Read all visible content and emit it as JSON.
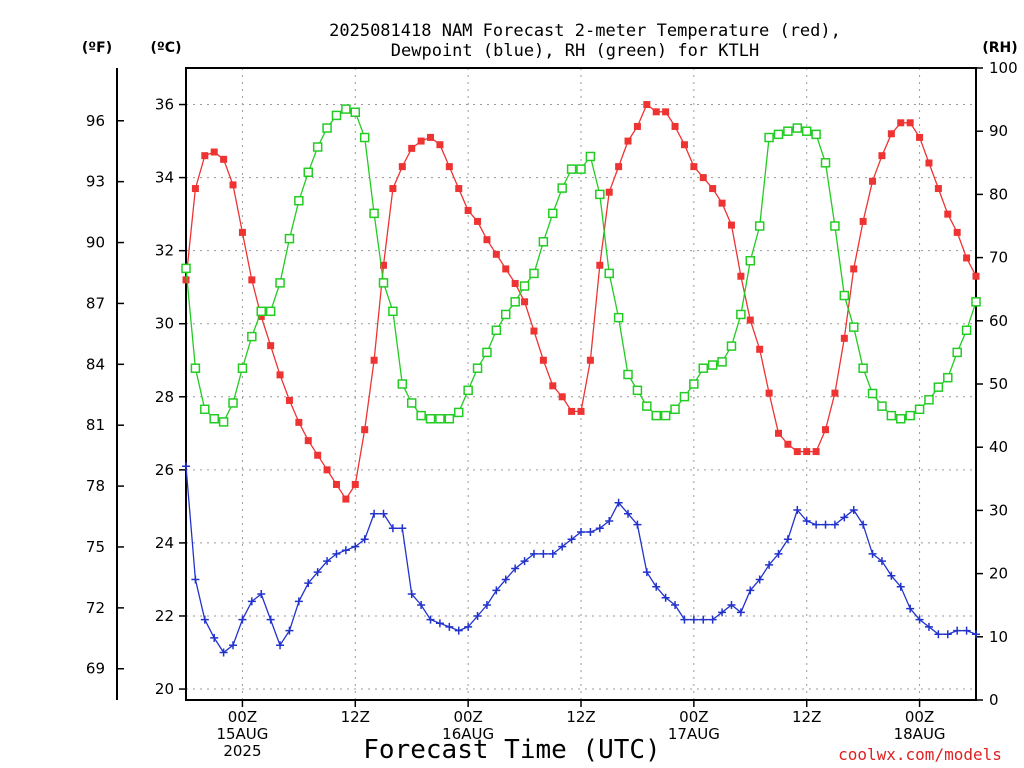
{
  "chart_data": {
    "type": "line",
    "title": [
      "2025081418 NAM Forecast 2-meter Temperature (red),",
      "Dewpoint (blue), RH (green) for KTLH"
    ],
    "xlabel": "Forecast Time (UTC)",
    "credit": "coolwx.com/models",
    "units": {
      "f": "(ºF)",
      "c": "(ºC)",
      "rh": "(RH)"
    },
    "x_unit": "forecast hour (valid from 2025081418 UTC)",
    "x": [
      0,
      1,
      2,
      3,
      4,
      5,
      6,
      7,
      8,
      9,
      10,
      11,
      12,
      13,
      14,
      15,
      16,
      17,
      18,
      19,
      20,
      21,
      22,
      23,
      24,
      25,
      26,
      27,
      28,
      29,
      30,
      31,
      32,
      33,
      34,
      35,
      36,
      37,
      38,
      39,
      40,
      41,
      42,
      43,
      44,
      45,
      46,
      47,
      48,
      49,
      50,
      51,
      52,
      53,
      54,
      55,
      56,
      57,
      58,
      59,
      60,
      61,
      62,
      63,
      64,
      65,
      66,
      67,
      68,
      69,
      70,
      71,
      72,
      73,
      74,
      75,
      76,
      77,
      78,
      79,
      80,
      81,
      82,
      83,
      84
    ],
    "xlim": [
      0,
      84
    ],
    "x_ticks": [
      {
        "x": 6,
        "lines": [
          "00Z",
          "15AUG",
          "2025"
        ]
      },
      {
        "x": 18,
        "lines": [
          "12Z"
        ]
      },
      {
        "x": 30,
        "lines": [
          "00Z",
          "16AUG"
        ]
      },
      {
        "x": 42,
        "lines": [
          "12Z"
        ]
      },
      {
        "x": 54,
        "lines": [
          "00Z",
          "17AUG"
        ]
      },
      {
        "x": 66,
        "lines": [
          "12Z"
        ]
      },
      {
        "x": 78,
        "lines": [
          "00Z",
          "18AUG"
        ]
      }
    ],
    "ylim_c": [
      19.7,
      37.0
    ],
    "yticks_c": [
      20,
      22,
      24,
      26,
      28,
      30,
      32,
      34,
      36
    ],
    "yticks_f": [
      69,
      72,
      75,
      78,
      81,
      84,
      87,
      90,
      93,
      96
    ],
    "ylim_rh": [
      0,
      100
    ],
    "yticks_rh": [
      0,
      10,
      20,
      30,
      40,
      50,
      60,
      70,
      80,
      90,
      100
    ],
    "series": [
      {
        "name": "2-meter Temperature",
        "color": "#ee3333",
        "marker": "filled-square",
        "axis": "c",
        "values": [
          31.2,
          33.7,
          34.6,
          34.7,
          34.5,
          33.8,
          32.5,
          31.2,
          30.2,
          29.4,
          28.6,
          27.9,
          27.3,
          26.8,
          26.4,
          26.0,
          25.6,
          25.2,
          25.6,
          27.1,
          29.0,
          31.6,
          33.7,
          34.3,
          34.8,
          35.0,
          35.1,
          34.9,
          34.3,
          33.7,
          33.1,
          32.8,
          32.3,
          31.9,
          31.5,
          31.1,
          30.6,
          29.8,
          29.0,
          28.3,
          28.0,
          27.6,
          27.6,
          29.0,
          31.6,
          33.6,
          34.3,
          35.0,
          35.4,
          36.0,
          35.8,
          35.8,
          35.4,
          34.9,
          34.3,
          34.0,
          33.7,
          33.3,
          32.7,
          31.3,
          30.1,
          29.3,
          28.1,
          27.0,
          26.7,
          26.5,
          26.5,
          26.5,
          27.1,
          28.1,
          29.6,
          31.5,
          32.8,
          33.9,
          34.6,
          35.2,
          35.5,
          35.5,
          35.1,
          34.4,
          33.7,
          33.0,
          32.5,
          31.8,
          31.3
        ]
      },
      {
        "name": "Dewpoint",
        "color": "#2233cc",
        "marker": "plus",
        "axis": "c",
        "values": [
          26.1,
          23.0,
          21.9,
          21.4,
          21.0,
          21.2,
          21.9,
          22.4,
          22.6,
          21.9,
          21.2,
          21.6,
          22.4,
          22.9,
          23.2,
          23.5,
          23.7,
          23.8,
          23.9,
          24.1,
          24.8,
          24.8,
          24.4,
          24.4,
          22.6,
          22.3,
          21.9,
          21.8,
          21.7,
          21.6,
          21.7,
          22.0,
          22.3,
          22.7,
          23.0,
          23.3,
          23.5,
          23.7,
          23.7,
          23.7,
          23.9,
          24.1,
          24.3,
          24.3,
          24.4,
          24.6,
          25.1,
          24.8,
          24.5,
          23.2,
          22.8,
          22.5,
          22.3,
          21.9,
          21.9,
          21.9,
          21.9,
          22.1,
          22.3,
          22.1,
          22.7,
          23.0,
          23.4,
          23.7,
          24.1,
          24.9,
          24.6,
          24.5,
          24.5,
          24.5,
          24.7,
          24.9,
          24.5,
          23.7,
          23.5,
          23.1,
          22.8,
          22.2,
          21.9,
          21.7,
          21.5,
          21.5,
          21.6,
          21.6,
          21.5
        ]
      },
      {
        "name": "RH",
        "color": "#22cc22",
        "marker": "open-square",
        "axis": "rh",
        "values": [
          68.3,
          52.5,
          46.0,
          44.5,
          44.0,
          47.0,
          52.5,
          57.5,
          61.5,
          61.5,
          66.0,
          73.0,
          79.0,
          83.5,
          87.5,
          90.5,
          92.5,
          93.5,
          93.0,
          89.0,
          77.0,
          66.0,
          61.5,
          50.0,
          47.0,
          45.0,
          44.5,
          44.5,
          44.5,
          45.5,
          49.0,
          52.5,
          55.0,
          58.5,
          61.0,
          63.0,
          65.5,
          67.5,
          72.5,
          77.0,
          81.0,
          84.0,
          84.0,
          86.0,
          80.0,
          67.5,
          60.5,
          51.5,
          49.0,
          46.5,
          45.0,
          45.0,
          46.0,
          48.0,
          50.0,
          52.5,
          53.0,
          53.5,
          56.0,
          61.0,
          69.5,
          75.0,
          89.0,
          89.5,
          90.0,
          90.5,
          90.0,
          89.5,
          85.0,
          75.0,
          64.0,
          59.0,
          52.5,
          48.5,
          46.5,
          45.0,
          44.5,
          45.0,
          46.0,
          47.5,
          49.5,
          51.0,
          55.0,
          58.5,
          63.0
        ]
      }
    ]
  }
}
